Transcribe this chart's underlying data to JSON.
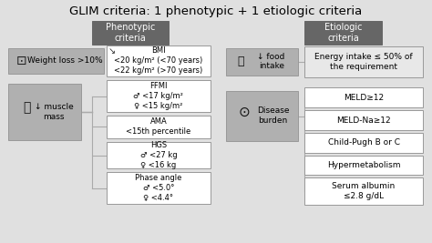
{
  "title": "GLIM criteria: 1 phenotypic + 1 etiologic criteria",
  "bg_color": "#e0e0e0",
  "dark_box_color": "#666666",
  "light_box_color": "#e8e8e8",
  "medium_box_color": "#b0b0b0",
  "white_box_color": "#ffffff",
  "title_fontsize": 9.5,
  "phenotypic_label": "Phenotypic\ncriteria",
  "etiologic_label": "Etiologic\ncriteria",
  "weight_loss_label": "Weight loss >10%",
  "bmi_label": "BMI\n<20 kg/m² (<70 years)\n<22 kg/m² (>70 years)",
  "muscle_mass_label": "↓ muscle\nmass",
  "ffmi_label": "FFMI\n♂ <17 kg/m²\n♀ <15 kg/m²",
  "ama_label": "AMA\n<15th percentile",
  "hgs_label": "HGS\n♂ <27 kg\n♀ <16 kg",
  "phase_label": "Phase angle\n♂ <5.0°\n♀ <4.4°",
  "food_intake_label": "↓ food\nintake",
  "energy_label": "Energy intake ≤ 50% of\nthe requirement",
  "disease_burden_label": "Disease\nburden",
  "meld_label": "MELD≥12",
  "meld_na_label": "MELD-Na≥12",
  "child_pugh_label": "Child-Pugh B or C",
  "hyper_label": "Hypermetabolism",
  "serum_label": "Serum albumin\n≤2.8 g/dL",
  "line_color": "#aaaaaa",
  "edge_color": "#999999"
}
